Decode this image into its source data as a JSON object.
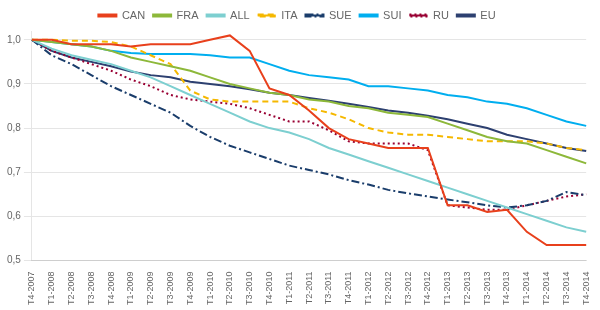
{
  "chart_data": {
    "type": "line",
    "categories": [
      "T4-2007",
      "T1-2008",
      "T2-2008",
      "T3-2008",
      "T4-2008",
      "T1-2009",
      "T2-2009",
      "T3-2009",
      "T4-2009",
      "T1-2010",
      "T2-2010",
      "T3-2010",
      "T4-2010",
      "T1-2011",
      "T2-2011",
      "T3-2011",
      "T4-2011",
      "T1-2012",
      "T2-2012",
      "T3-2012",
      "T4-2012",
      "T1-2013",
      "T2-2013",
      "T3-2013",
      "T4-2013",
      "T1-2014",
      "T2-2014",
      "T3-2014",
      "T4-2014"
    ],
    "series": [
      {
        "name": "CAN",
        "color": "#e8401c",
        "values": [
          1.0,
          1.0,
          0.99,
          0.99,
          0.99,
          0.985,
          0.99,
          0.99,
          0.99,
          1.0,
          1.01,
          0.975,
          0.89,
          0.875,
          0.84,
          0.8,
          0.775,
          0.765,
          0.755,
          0.755,
          0.755,
          0.625,
          0.625,
          0.61,
          0.615,
          0.565,
          0.535,
          0.535,
          0.535
        ]
      },
      {
        "name": "FRA",
        "color": "#8db83a",
        "values": [
          1.0,
          0.995,
          0.99,
          0.985,
          0.975,
          0.96,
          0.95,
          0.94,
          0.93,
          0.915,
          0.9,
          0.89,
          0.88,
          0.875,
          0.865,
          0.86,
          0.85,
          0.845,
          0.835,
          0.83,
          0.825,
          0.81,
          0.795,
          0.78,
          0.77,
          0.765,
          0.75,
          0.735,
          0.72
        ]
      },
      {
        "name": "ALL",
        "color": "#7dcfd0",
        "values": [
          1.0,
          0.98,
          0.965,
          0.955,
          0.945,
          0.93,
          0.915,
          0.895,
          0.875,
          0.855,
          0.835,
          0.815,
          0.8,
          0.79,
          0.775,
          0.755,
          0.74,
          0.725,
          0.71,
          0.695,
          0.68,
          0.665,
          0.65,
          0.635,
          0.62,
          0.605,
          0.59,
          0.575,
          0.565
        ]
      },
      {
        "name": "ITA",
        "color": "#f5b800",
        "line_style": "dashed",
        "values": [
          1.0,
          1.0,
          0.998,
          0.998,
          0.995,
          0.985,
          0.965,
          0.945,
          0.885,
          0.865,
          0.86,
          0.86,
          0.86,
          0.86,
          0.845,
          0.835,
          0.82,
          0.8,
          0.79,
          0.785,
          0.785,
          0.78,
          0.775,
          0.77,
          0.77,
          0.77,
          0.765,
          0.755,
          0.75
        ]
      },
      {
        "name": "SUE",
        "color": "#1a3d6b",
        "line_style": "dashdot",
        "values": [
          1.0,
          0.965,
          0.945,
          0.92,
          0.895,
          0.875,
          0.855,
          0.835,
          0.805,
          0.78,
          0.76,
          0.745,
          0.73,
          0.715,
          0.705,
          0.695,
          0.682,
          0.672,
          0.66,
          0.652,
          0.645,
          0.638,
          0.632,
          0.625,
          0.62,
          0.625,
          0.635,
          0.655,
          0.648
        ]
      },
      {
        "name": "SUI",
        "color": "#00aeef",
        "values": [
          1.0,
          0.995,
          0.99,
          0.985,
          0.975,
          0.97,
          0.968,
          0.968,
          0.968,
          0.965,
          0.96,
          0.96,
          0.945,
          0.93,
          0.92,
          0.915,
          0.91,
          0.895,
          0.895,
          0.89,
          0.885,
          0.875,
          0.87,
          0.86,
          0.855,
          0.845,
          0.83,
          0.815,
          0.805
        ]
      },
      {
        "name": "RU",
        "color": "#990033",
        "line_style": "dotted",
        "values": [
          1.0,
          0.975,
          0.96,
          0.945,
          0.93,
          0.91,
          0.895,
          0.875,
          0.865,
          0.86,
          0.855,
          0.845,
          0.83,
          0.815,
          0.815,
          0.795,
          0.77,
          0.765,
          0.765,
          0.765,
          0.75,
          0.625,
          0.62,
          0.615,
          0.615,
          0.625,
          0.635,
          0.645,
          0.65
        ]
      },
      {
        "name": "EU",
        "color": "#2d4070",
        "values": [
          1.0,
          0.975,
          0.96,
          0.95,
          0.94,
          0.928,
          0.92,
          0.915,
          0.905,
          0.9,
          0.895,
          0.888,
          0.88,
          0.875,
          0.868,
          0.862,
          0.855,
          0.848,
          0.84,
          0.835,
          0.828,
          0.82,
          0.81,
          0.8,
          0.785,
          0.775,
          0.765,
          0.755,
          0.748
        ]
      }
    ],
    "ylim": [
      0.5,
      1.02
    ],
    "yticks": [
      {
        "value": 0.5,
        "label": "0,5"
      },
      {
        "value": 0.6,
        "label": "0,6"
      },
      {
        "value": 0.7,
        "label": "0,7"
      },
      {
        "value": 0.8,
        "label": "0,8"
      },
      {
        "value": 0.9,
        "label": "0,9"
      },
      {
        "value": 1.0,
        "label": "1,0"
      }
    ],
    "grid": true,
    "legend": "top"
  }
}
